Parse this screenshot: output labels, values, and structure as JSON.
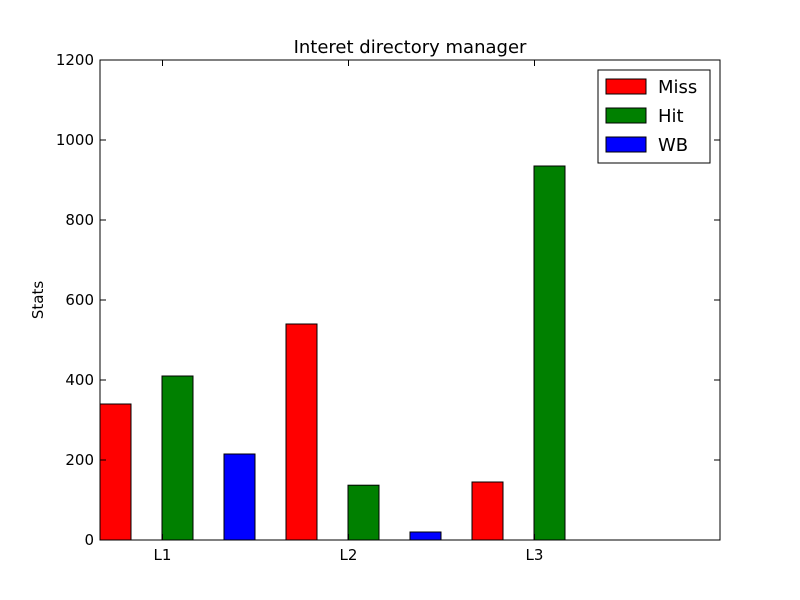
{
  "chart_data": {
    "type": "bar",
    "title": "Interet directory manager",
    "xlabel": "",
    "ylabel": "Stats",
    "categories": [
      "L1",
      "L2",
      "L3"
    ],
    "series": [
      {
        "name": "Miss",
        "color": "#ff0000",
        "values": [
          340,
          540,
          145
        ]
      },
      {
        "name": "Hit",
        "color": "#008000",
        "values": [
          410,
          137,
          935
        ]
      },
      {
        "name": "WB",
        "color": "#0000ff",
        "values": [
          215,
          20,
          0
        ]
      }
    ],
    "ylim": [
      0,
      1200
    ],
    "yticks": [
      0,
      200,
      400,
      600,
      800,
      1000,
      1200
    ],
    "grid": false,
    "legend_position": "top-right"
  }
}
